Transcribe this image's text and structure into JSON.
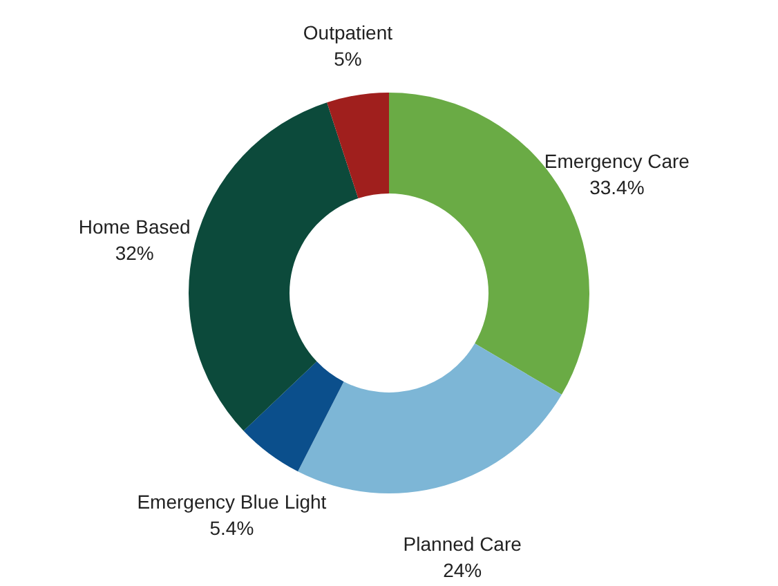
{
  "chart_data": {
    "type": "donut",
    "categories": [
      "Emergency Care",
      "Planned Care",
      "Emergency Blue Light",
      "Home Based",
      "Outpatient"
    ],
    "values": [
      33.4,
      24,
      5.4,
      32,
      5
    ],
    "value_labels": [
      "33.4%",
      "24%",
      "5.4%",
      "32%",
      "5%"
    ],
    "colors": [
      "#6aab45",
      "#7db6d6",
      "#0b4f8c",
      "#0c4a3b",
      "#a01f1d"
    ]
  }
}
